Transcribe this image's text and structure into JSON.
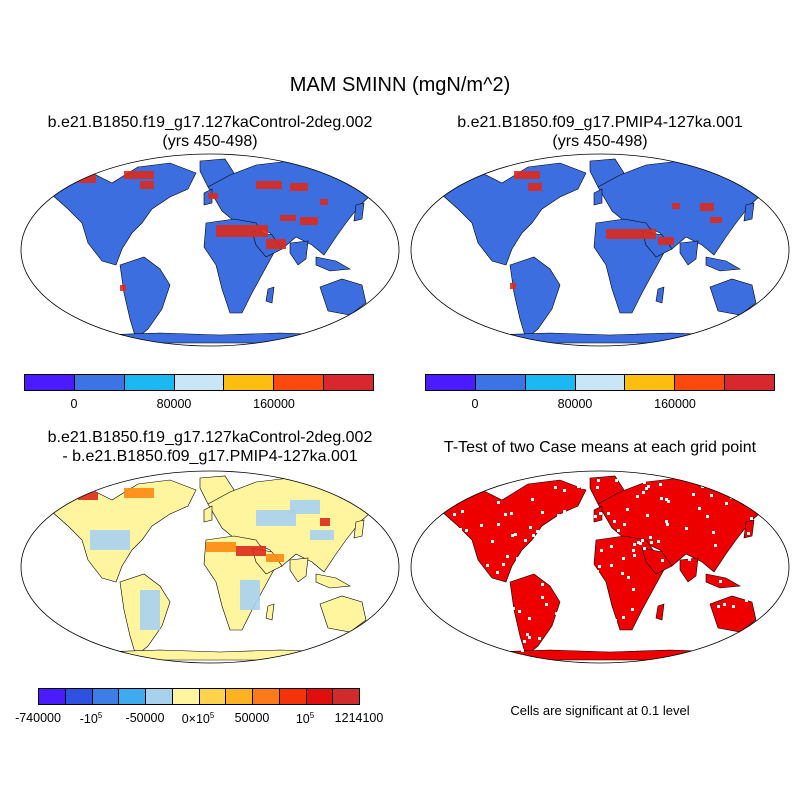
{
  "title": "MAM SMINN (mgN/m^2)",
  "panels": [
    {
      "id": "a",
      "title_line1": "b.e21.B1850.f19_g17.127kaControl-2deg.002",
      "title_line2": "(yrs 450-498)"
    },
    {
      "id": "b",
      "title_line1": "b.e21.B1850.f09_g17.PMIP4-127ka.001",
      "title_line2": "(yrs 450-498)"
    },
    {
      "id": "c",
      "title_line1": "b.e21.B1850.f19_g17.127kaControl-2deg.002",
      "title_line2": "- b.e21.B1850.f09_g17.PMIP4-127ka.001"
    },
    {
      "id": "d",
      "title_line1": "T-Test of two Case means at each grid point",
      "title_line2": ""
    }
  ],
  "colorbar_top": {
    "colors": [
      "#4a1bff",
      "#3c73e5",
      "#1cb8f2",
      "#c9e6f7",
      "#fdbe0f",
      "#fc4a0e",
      "#d9282d"
    ],
    "labels": [
      "0",
      "80000",
      "160000"
    ]
  },
  "colorbar_bottom": {
    "colors": [
      "#4a1bff",
      "#2e52e0",
      "#3c7de6",
      "#40aaf0",
      "#a8d1ee",
      "#fff59f",
      "#fdd34d",
      "#fdb221",
      "#fd7a1a",
      "#f5330b",
      "#e10e0e",
      "#cf2b2b"
    ],
    "labels": [
      "-740000",
      "-10^5",
      "-50000",
      "0×10^5",
      "50000",
      "10^5",
      "1214100"
    ]
  },
  "significance_note": "Cells are significant at 0.1 level",
  "map_colors": {
    "land_a": "#3c6ee0",
    "land_b": "#3c6ee0",
    "land_c": "#fff59f",
    "land_d": "#ee0000",
    "hot": "#dd2a1c",
    "orange": "#fd8a10",
    "cool": "#a9d1ef",
    "coast": "#000000"
  }
}
